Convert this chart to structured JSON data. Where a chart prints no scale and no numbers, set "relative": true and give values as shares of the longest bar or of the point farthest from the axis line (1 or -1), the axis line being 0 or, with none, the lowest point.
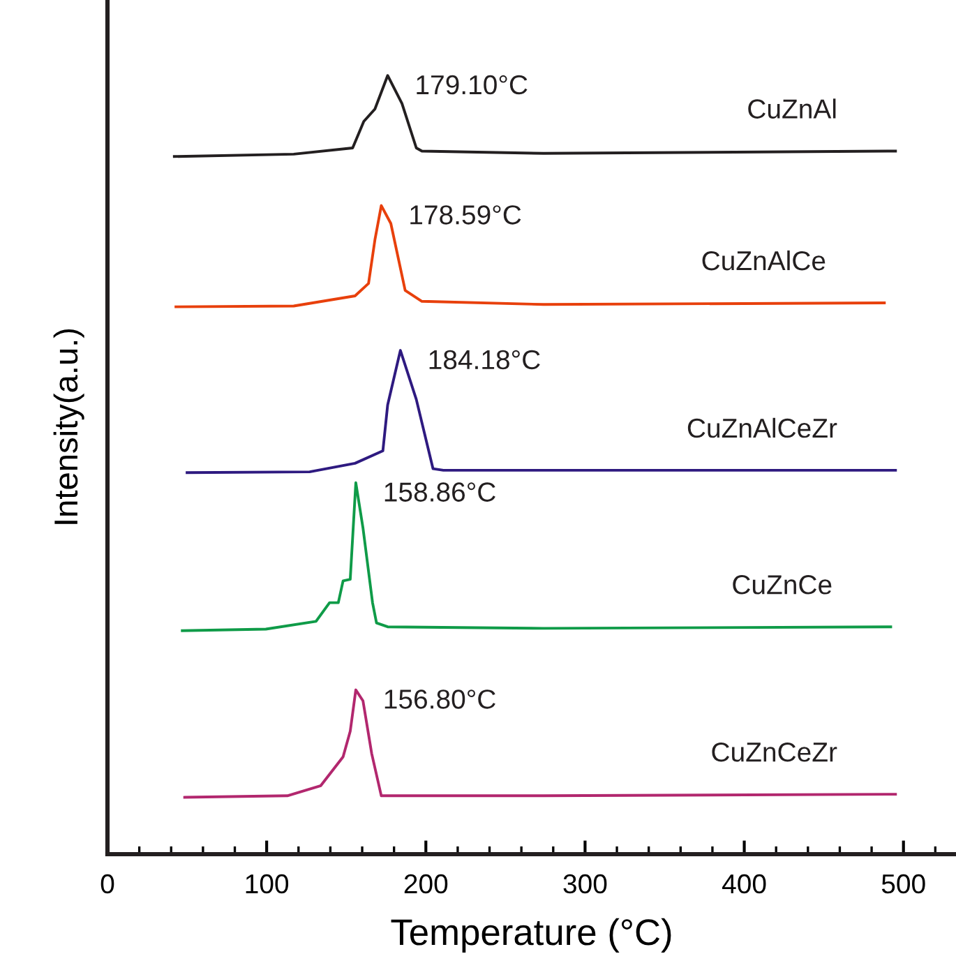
{
  "chart_data": {
    "type": "line",
    "relative": true,
    "xlabel": "Temperature (°C)",
    "ylabel": "Intensity(a.u.)",
    "xlim": [
      0,
      533
    ],
    "xticks": [
      0,
      {
        "value": 20,
        "label": null
      },
      {
        "value": 40,
        "label": null
      },
      {
        "value": 60,
        "label": null
      },
      {
        "value": 80,
        "label": null
      },
      100,
      {
        "value": 120,
        "label": null
      },
      {
        "value": 140,
        "label": null
      },
      {
        "value": 160,
        "label": null
      },
      {
        "value": 180,
        "label": null
      },
      200,
      {
        "value": 220,
        "label": null
      },
      {
        "value": 240,
        "label": null
      },
      {
        "value": 260,
        "label": null
      },
      {
        "value": 280,
        "label": null
      },
      300,
      {
        "value": 320,
        "label": null
      },
      {
        "value": 340,
        "label": null
      },
      {
        "value": 360,
        "label": null
      },
      {
        "value": 380,
        "label": null
      },
      400,
      {
        "value": 420,
        "label": null
      },
      {
        "value": 440,
        "label": null
      },
      {
        "value": 460,
        "label": null
      },
      {
        "value": 480,
        "label": null
      },
      500,
      {
        "value": 520,
        "label": null
      }
    ],
    "grid": false,
    "legend": false,
    "marker": "none",
    "line_style": "solid",
    "tick_labels": "x",
    "series": [
      {
        "name": "CuZnAl",
        "color": "#231f20",
        "x": [
          42,
          117,
          154,
          161,
          168,
          176,
          185,
          194,
          197.5,
          274,
          495
        ],
        "values": [
          0.896,
          0.899,
          0.907,
          0.941,
          0.957,
          1.0,
          0.964,
          0.907,
          0.903,
          0.9,
          0.903
        ]
      },
      {
        "name": "CuZnAlCe",
        "color": "#e8400c",
        "x": [
          43,
          117,
          155.5,
          164,
          168,
          172,
          178,
          187,
          197.5,
          274,
          488
        ],
        "values": [
          0.703,
          0.704,
          0.717,
          0.733,
          0.789,
          0.833,
          0.81,
          0.724,
          0.71,
          0.706,
          0.708
        ]
      },
      {
        "name": "CuZnAlCeZr",
        "color": "#2e1a80",
        "x": [
          50,
          127,
          155.5,
          173,
          176,
          184,
          194,
          204.5,
          211,
          344,
          495
        ],
        "values": [
          0.49,
          0.491,
          0.502,
          0.518,
          0.577,
          0.647,
          0.584,
          0.495,
          0.493,
          0.493,
          0.493
        ]
      },
      {
        "name": "CuZnCe",
        "color": "#0f9b48",
        "x": [
          47,
          99.5,
          131,
          139.5,
          145,
          148,
          152.5,
          156,
          160.5,
          166.5,
          169,
          176,
          274,
          492
        ],
        "values": [
          0.287,
          0.289,
          0.299,
          0.323,
          0.323,
          0.351,
          0.353,
          0.477,
          0.419,
          0.323,
          0.297,
          0.292,
          0.29,
          0.292
        ]
      },
      {
        "name": "CuZnCeZr",
        "color": "#b2276e",
        "x": [
          48.5,
          113,
          134,
          148,
          152.5,
          156,
          160.5,
          166,
          172,
          274,
          495
        ],
        "values": [
          0.073,
          0.075,
          0.088,
          0.125,
          0.158,
          0.211,
          0.197,
          0.129,
          0.075,
          0.075,
          0.077
        ]
      }
    ],
    "annotations": [
      {
        "text": "179.10°C",
        "x": 176,
        "y": 1.0
      },
      {
        "text": "178.59°C",
        "x": 172,
        "y": 0.833
      },
      {
        "text": "184.18°C",
        "x": 184,
        "y": 0.647
      },
      {
        "text": "158.86°C",
        "x": 156,
        "y": 0.477
      },
      {
        "text": "156.80°C",
        "x": 156,
        "y": 0.211
      }
    ]
  }
}
